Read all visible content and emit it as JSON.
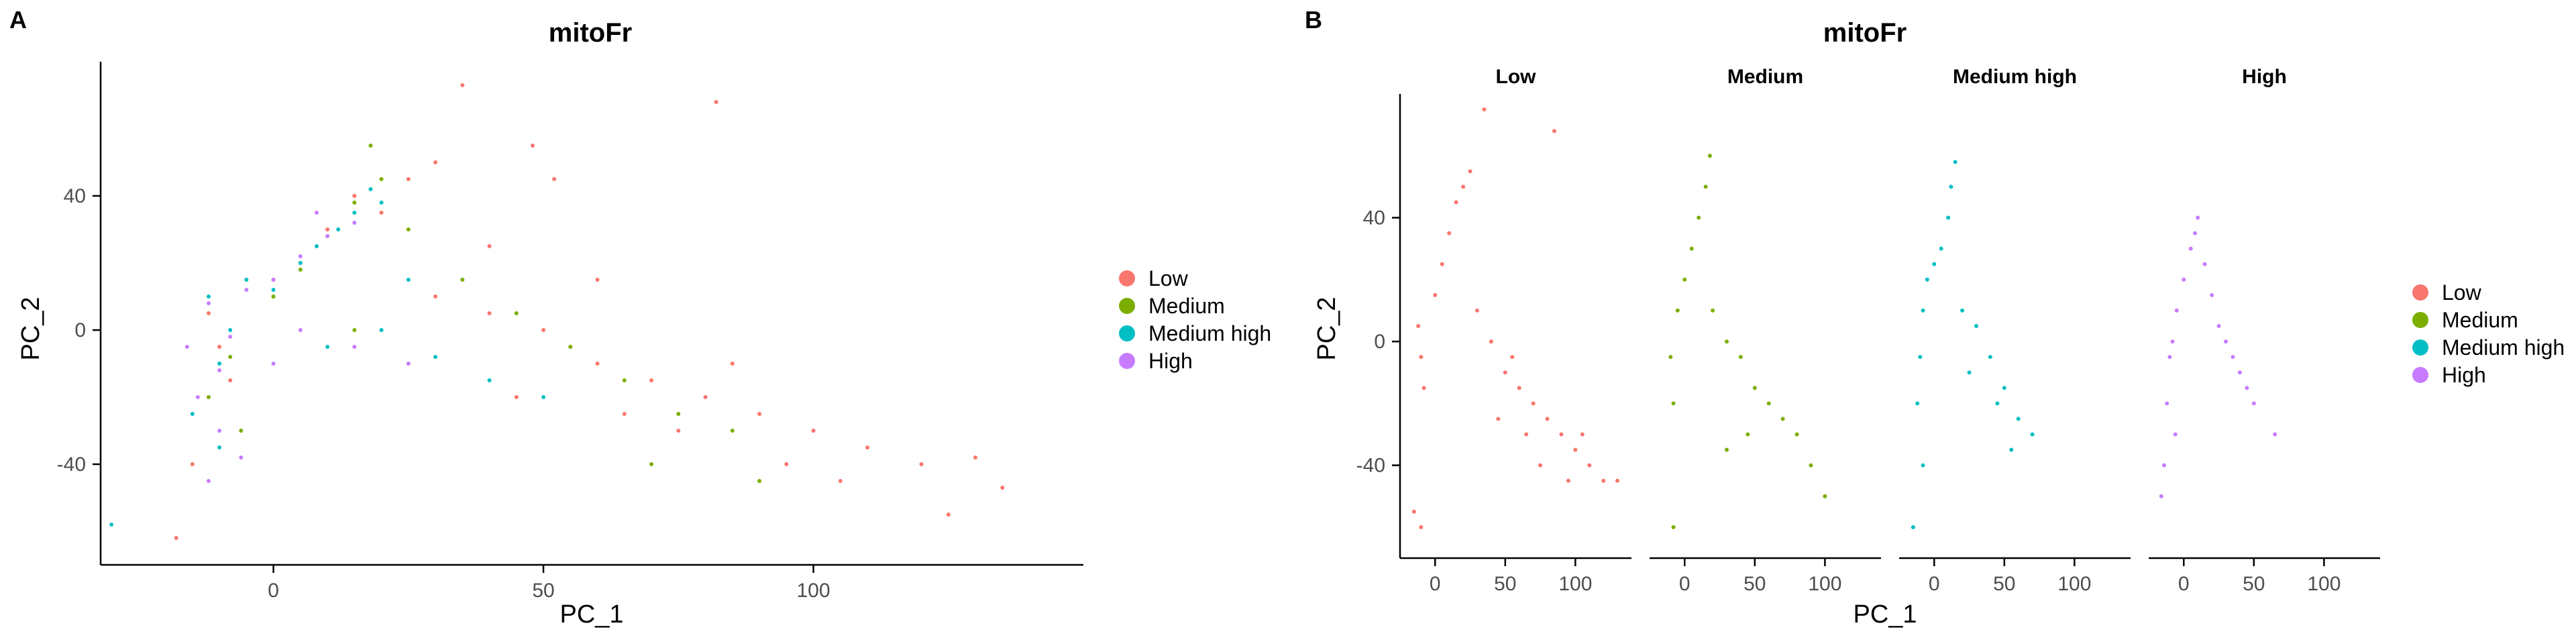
{
  "panels": [
    {
      "tag": "A",
      "title": "mitoFr",
      "xlabel": "PC_1",
      "ylabel": "PC_2"
    },
    {
      "tag": "B",
      "title": "mitoFr",
      "xlabel": "PC_1",
      "ylabel": "PC_2"
    }
  ],
  "colors": {
    "Low": "#F8766D",
    "Medium": "#7CAE00",
    "Medium high": "#00BFC4",
    "High": "#C77CFF"
  },
  "chart_data": [
    {
      "type": "scatter",
      "title": "mitoFr",
      "xlabel": "PC_1",
      "ylabel": "PC_2",
      "x_ticks": [
        0,
        50,
        100
      ],
      "y_ticks": [
        -40,
        0,
        40
      ],
      "xlim": [
        -32,
        150
      ],
      "ylim": [
        -70,
        80
      ],
      "legend": {
        "entries": [
          "Low",
          "Medium",
          "Medium high",
          "High"
        ],
        "position": "right"
      },
      "series": [
        {
          "name": "Low",
          "color": "#F8766D",
          "points": [
            [
              -10,
              -5
            ],
            [
              -8,
              -15
            ],
            [
              -12,
              5
            ],
            [
              0,
              15
            ],
            [
              5,
              20
            ],
            [
              10,
              30
            ],
            [
              15,
              40
            ],
            [
              20,
              35
            ],
            [
              25,
              45
            ],
            [
              30,
              10
            ],
            [
              40,
              5
            ],
            [
              50,
              0
            ],
            [
              60,
              -10
            ],
            [
              70,
              -15
            ],
            [
              80,
              -20
            ],
            [
              90,
              -25
            ],
            [
              100,
              -30
            ],
            [
              110,
              -35
            ],
            [
              120,
              -40
            ],
            [
              130,
              -38
            ],
            [
              135,
              -47
            ],
            [
              125,
              -55
            ],
            [
              82,
              68
            ],
            [
              35,
              73
            ],
            [
              -18,
              -62
            ],
            [
              -15,
              -40
            ],
            [
              45,
              -20
            ],
            [
              55,
              -5
            ],
            [
              65,
              -25
            ],
            [
              75,
              -30
            ],
            [
              85,
              -10
            ],
            [
              95,
              -40
            ],
            [
              105,
              -45
            ],
            [
              60,
              15
            ],
            [
              40,
              25
            ],
            [
              30,
              50
            ],
            [
              48,
              55
            ],
            [
              52,
              45
            ]
          ]
        },
        {
          "name": "Medium",
          "color": "#7CAE00",
          "points": [
            [
              -8,
              -8
            ],
            [
              0,
              10
            ],
            [
              5,
              18
            ],
            [
              10,
              28
            ],
            [
              15,
              38
            ],
            [
              20,
              45
            ],
            [
              18,
              55
            ],
            [
              25,
              30
            ],
            [
              35,
              15
            ],
            [
              45,
              5
            ],
            [
              55,
              -5
            ],
            [
              65,
              -15
            ],
            [
              75,
              -25
            ],
            [
              85,
              -30
            ],
            [
              25,
              -10
            ],
            [
              15,
              0
            ],
            [
              -12,
              -20
            ],
            [
              -6,
              -30
            ],
            [
              70,
              -40
            ],
            [
              90,
              -45
            ]
          ]
        },
        {
          "name": "Medium high",
          "color": "#00BFC4",
          "points": [
            [
              -10,
              -10
            ],
            [
              -8,
              0
            ],
            [
              -12,
              10
            ],
            [
              -5,
              15
            ],
            [
              0,
              12
            ],
            [
              5,
              20
            ],
            [
              8,
              25
            ],
            [
              12,
              30
            ],
            [
              15,
              35
            ],
            [
              20,
              38
            ],
            [
              10,
              -5
            ],
            [
              20,
              0
            ],
            [
              30,
              -8
            ],
            [
              40,
              -15
            ],
            [
              -15,
              -25
            ],
            [
              -10,
              -35
            ],
            [
              -30,
              -58
            ],
            [
              50,
              -20
            ],
            [
              25,
              15
            ],
            [
              18,
              42
            ]
          ]
        },
        {
          "name": "High",
          "color": "#C77CFF",
          "points": [
            [
              -10,
              -12
            ],
            [
              -8,
              -2
            ],
            [
              -12,
              8
            ],
            [
              -5,
              12
            ],
            [
              0,
              15
            ],
            [
              5,
              22
            ],
            [
              10,
              28
            ],
            [
              15,
              32
            ],
            [
              -14,
              -20
            ],
            [
              -10,
              -30
            ],
            [
              -6,
              -38
            ],
            [
              5,
              0
            ],
            [
              15,
              -5
            ],
            [
              25,
              -10
            ],
            [
              -12,
              -45
            ],
            [
              0,
              -10
            ],
            [
              -16,
              -5
            ],
            [
              8,
              35
            ]
          ]
        }
      ]
    },
    {
      "type": "scatter",
      "title": "mitoFr",
      "xlabel": "PC_1",
      "ylabel": "PC_2",
      "facets": [
        "Low",
        "Medium",
        "Medium high",
        "High"
      ],
      "x_ticks": [
        0,
        50,
        100
      ],
      "y_ticks": [
        -40,
        0,
        40
      ],
      "xlim": [
        -25,
        140
      ],
      "ylim": [
        -70,
        80
      ],
      "legend": {
        "entries": [
          "Low",
          "Medium",
          "Medium high",
          "High"
        ],
        "position": "right"
      },
      "series": [
        {
          "name": "Low",
          "color": "#F8766D",
          "points": [
            [
              -10,
              -5
            ],
            [
              -8,
              -15
            ],
            [
              -12,
              5
            ],
            [
              0,
              15
            ],
            [
              5,
              25
            ],
            [
              10,
              35
            ],
            [
              15,
              45
            ],
            [
              20,
              50
            ],
            [
              25,
              55
            ],
            [
              30,
              10
            ],
            [
              40,
              0
            ],
            [
              50,
              -10
            ],
            [
              60,
              -15
            ],
            [
              70,
              -20
            ],
            [
              80,
              -25
            ],
            [
              90,
              -30
            ],
            [
              100,
              -35
            ],
            [
              110,
              -40
            ],
            [
              120,
              -45
            ],
            [
              130,
              -45
            ],
            [
              35,
              75
            ],
            [
              85,
              68
            ],
            [
              -15,
              -55
            ],
            [
              -10,
              -60
            ],
            [
              45,
              -25
            ],
            [
              55,
              -5
            ],
            [
              65,
              -30
            ],
            [
              75,
              -40
            ],
            [
              95,
              -45
            ],
            [
              105,
              -30
            ]
          ]
        },
        {
          "name": "Medium",
          "color": "#7CAE00",
          "points": [
            [
              -10,
              -5
            ],
            [
              -8,
              -20
            ],
            [
              -5,
              10
            ],
            [
              0,
              20
            ],
            [
              5,
              30
            ],
            [
              10,
              40
            ],
            [
              15,
              50
            ],
            [
              18,
              60
            ],
            [
              20,
              10
            ],
            [
              30,
              0
            ],
            [
              40,
              -5
            ],
            [
              50,
              -15
            ],
            [
              60,
              -20
            ],
            [
              70,
              -25
            ],
            [
              80,
              -30
            ],
            [
              90,
              -40
            ],
            [
              100,
              -50
            ],
            [
              -8,
              -60
            ],
            [
              30,
              -35
            ],
            [
              45,
              -30
            ]
          ]
        },
        {
          "name": "Medium high",
          "color": "#00BFC4",
          "points": [
            [
              -10,
              -5
            ],
            [
              -12,
              -20
            ],
            [
              -8,
              10
            ],
            [
              -5,
              20
            ],
            [
              0,
              25
            ],
            [
              5,
              30
            ],
            [
              10,
              40
            ],
            [
              12,
              50
            ],
            [
              15,
              58
            ],
            [
              20,
              10
            ],
            [
              30,
              5
            ],
            [
              40,
              -5
            ],
            [
              50,
              -15
            ],
            [
              60,
              -25
            ],
            [
              70,
              -30
            ],
            [
              -15,
              -60
            ],
            [
              -8,
              -40
            ],
            [
              25,
              -10
            ],
            [
              45,
              -20
            ],
            [
              55,
              -35
            ]
          ]
        },
        {
          "name": "High",
          "color": "#C77CFF",
          "points": [
            [
              -10,
              -5
            ],
            [
              -12,
              -20
            ],
            [
              -8,
              0
            ],
            [
              -5,
              10
            ],
            [
              0,
              20
            ],
            [
              5,
              30
            ],
            [
              8,
              35
            ],
            [
              10,
              40
            ],
            [
              15,
              25
            ],
            [
              20,
              15
            ],
            [
              25,
              5
            ],
            [
              30,
              0
            ],
            [
              35,
              -5
            ],
            [
              40,
              -10
            ],
            [
              45,
              -15
            ],
            [
              -14,
              -40
            ],
            [
              -16,
              -50
            ],
            [
              50,
              -20
            ],
            [
              65,
              -30
            ],
            [
              -6,
              -30
            ]
          ]
        }
      ]
    }
  ]
}
